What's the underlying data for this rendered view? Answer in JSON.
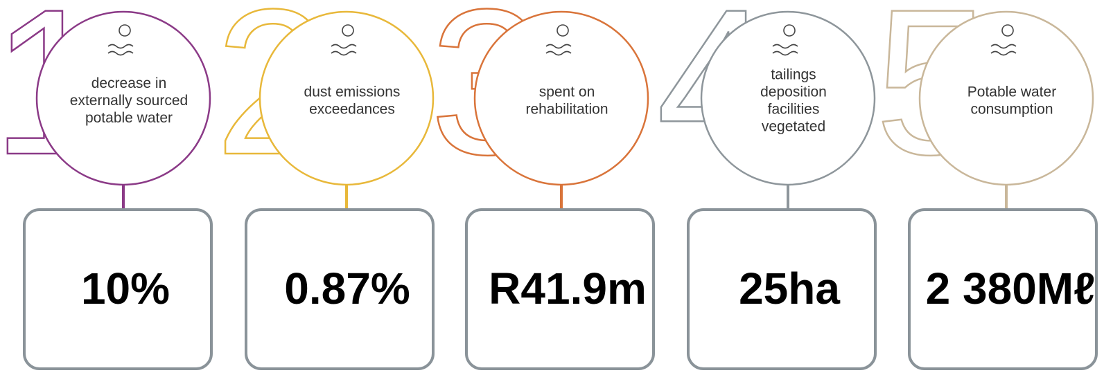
{
  "items": [
    {
      "numeral": "1",
      "label_lines": [
        "decrease in",
        "externally sourced",
        "potable water"
      ],
      "value": "10%",
      "color": "#8b3a87"
    },
    {
      "numeral": "2",
      "label_lines": [
        "dust emissions",
        "exceedances"
      ],
      "value": "0.87%",
      "color": "#e8b83a"
    },
    {
      "numeral": "3",
      "label_lines": [
        "spent on",
        "rehabilitation"
      ],
      "value": "R41.9m",
      "color": "#d9743a"
    },
    {
      "numeral": "4",
      "label_lines": [
        "tailings",
        "deposition",
        "facilities",
        "vegetated"
      ],
      "value": "25ha",
      "color": "#8e969b"
    },
    {
      "numeral": "5",
      "label_lines": [
        "Potable water",
        "consumption"
      ],
      "value": "2 380Mℓ",
      "color": "#c9b79a"
    }
  ]
}
